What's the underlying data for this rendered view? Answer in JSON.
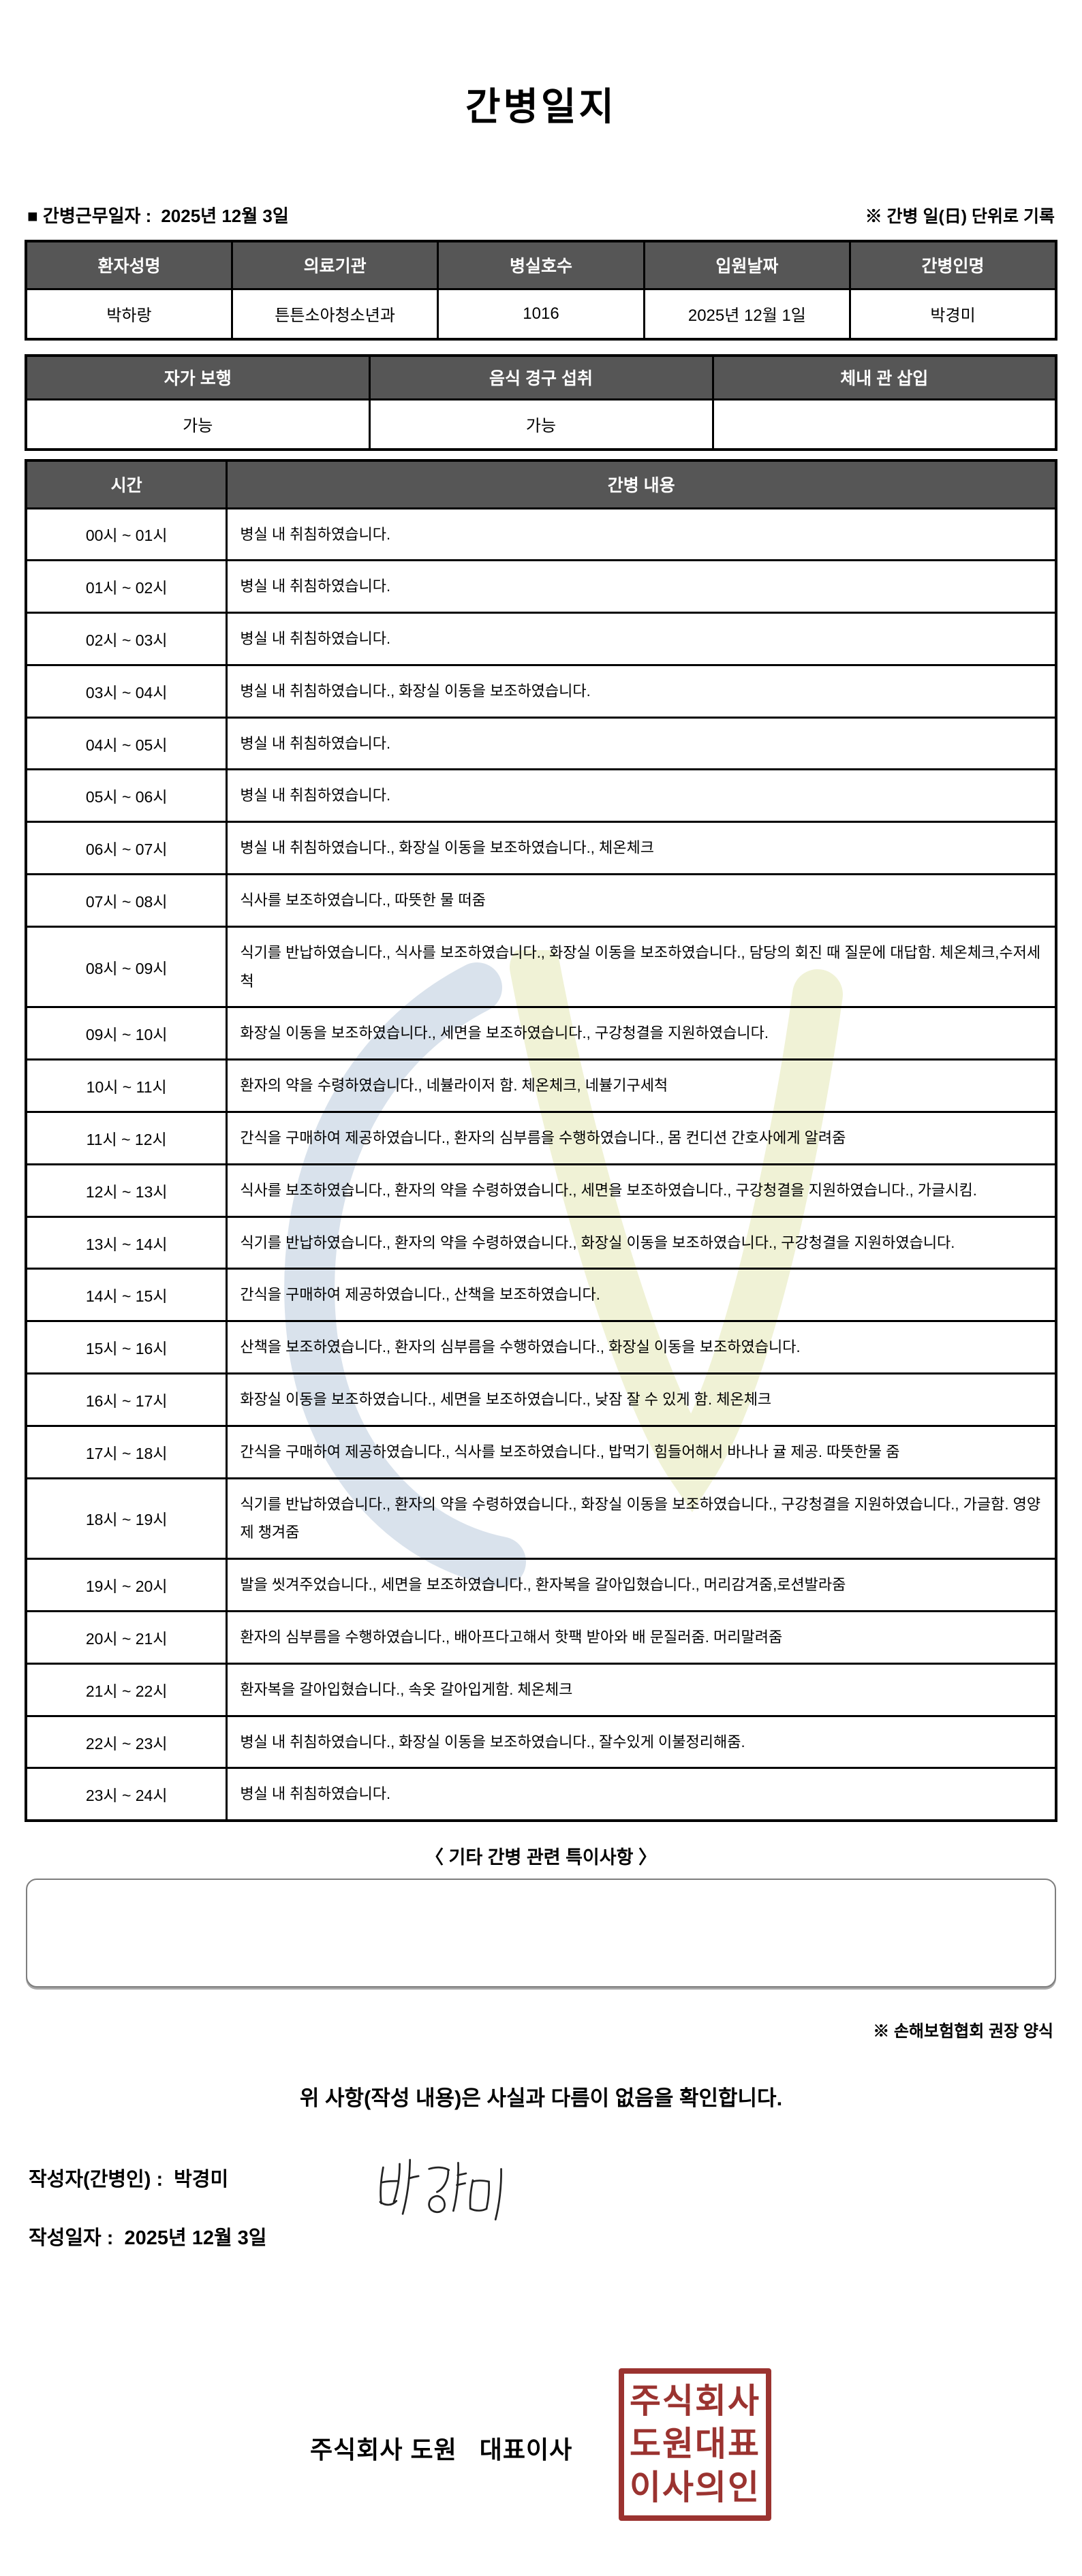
{
  "title": "간병일지",
  "meta": {
    "work_date_label": "■ 간병근무일자 :",
    "work_date_value": "2025년 12월 3일",
    "unit_note": "※ 간병 일(日) 단위로 기록"
  },
  "patient_table": {
    "headers": [
      "환자성명",
      "의료기관",
      "병실호수",
      "입원날짜",
      "간병인명"
    ],
    "values": [
      "박하랑",
      "튼튼소아청소년과",
      "1016",
      "2025년 12월 1일",
      "박경미"
    ]
  },
  "status_table": {
    "headers": [
      "자가 보행",
      "음식 경구 섭취",
      "체내 관 삽입"
    ],
    "values": [
      "가능",
      "가능",
      ""
    ]
  },
  "log_table": {
    "time_header": "시간",
    "content_header": "간병 내용",
    "rows": [
      {
        "time": "00시 ~ 01시",
        "content": "병실 내 취침하였습니다."
      },
      {
        "time": "01시 ~ 02시",
        "content": "병실 내 취침하였습니다."
      },
      {
        "time": "02시 ~ 03시",
        "content": "병실 내 취침하였습니다."
      },
      {
        "time": "03시 ~ 04시",
        "content": "병실 내 취침하였습니다., 화장실 이동을 보조하였습니다."
      },
      {
        "time": "04시 ~ 05시",
        "content": "병실 내 취침하였습니다."
      },
      {
        "time": "05시 ~ 06시",
        "content": "병실 내 취침하였습니다."
      },
      {
        "time": "06시 ~ 07시",
        "content": "병실 내 취침하였습니다., 화장실 이동을 보조하였습니다., 체온체크"
      },
      {
        "time": "07시 ~ 08시",
        "content": "식사를 보조하였습니다., 따뜻한 물 떠줌"
      },
      {
        "time": "08시 ~ 09시",
        "content": "식기를 반납하였습니다., 식사를 보조하였습니다., 화장실 이동을 보조하였습니다., 담당의 회진 때 질문에 대답함. 체온체크,수저세척"
      },
      {
        "time": "09시 ~ 10시",
        "content": "화장실 이동을 보조하였습니다., 세면을 보조하였습니다., 구강청결을 지원하였습니다."
      },
      {
        "time": "10시 ~ 11시",
        "content": "환자의 약을 수령하였습니다., 네뷸라이저 함. 체온체크, 네뷸기구세척"
      },
      {
        "time": "11시 ~ 12시",
        "content": "간식을 구매하여 제공하였습니다., 환자의 심부름을 수행하였습니다., 몸 컨디션 간호사에게 알려줌"
      },
      {
        "time": "12시 ~ 13시",
        "content": "식사를 보조하였습니다., 환자의 약을 수령하였습니다., 세면을 보조하였습니다., 구강청결을 지원하였습니다., 가글시킴."
      },
      {
        "time": "13시 ~ 14시",
        "content": "식기를 반납하였습니다., 환자의 약을 수령하였습니다., 화장실 이동을 보조하였습니다., 구강청결을 지원하였습니다."
      },
      {
        "time": "14시 ~ 15시",
        "content": "간식을 구매하여 제공하였습니다., 산책을 보조하였습니다."
      },
      {
        "time": "15시 ~ 16시",
        "content": "산책을 보조하였습니다., 환자의 심부름을 수행하였습니다., 화장실 이동을 보조하였습니다."
      },
      {
        "time": "16시 ~ 17시",
        "content": "화장실 이동을 보조하였습니다., 세면을 보조하였습니다., 낮잠 잘 수 있게 함. 체온체크"
      },
      {
        "time": "17시 ~ 18시",
        "content": "간식을 구매하여 제공하였습니다., 식사를 보조하였습니다., 밥먹기 힘들어해서 바나나 귤 제공. 따뜻한물 줌"
      },
      {
        "time": "18시 ~ 19시",
        "content": "식기를 반납하였습니다., 환자의 약을 수령하였습니다., 화장실 이동을 보조하였습니다., 구강청결을 지원하였습니다., 가글함. 영양제 챙겨줌"
      },
      {
        "time": "19시 ~ 20시",
        "content": "발을 씻겨주었습니다., 세면을 보조하였습니다., 환자복을 갈아입혔습니다., 머리감겨줌,로션발라줌"
      },
      {
        "time": "20시 ~ 21시",
        "content": "환자의 심부름을 수행하였습니다., 배아프다고해서 핫팩 받아와 배 문질러줌. 머리말려줌"
      },
      {
        "time": "21시 ~ 22시",
        "content": "환자복을 갈아입혔습니다., 속옷 갈아입게함. 체온체크"
      },
      {
        "time": "22시 ~ 23시",
        "content": "병실 내 취침하였습니다., 화장실 이동을 보조하였습니다., 잘수있게 이불정리해줌."
      },
      {
        "time": "23시 ~ 24시",
        "content": "병실 내 취침하였습니다."
      }
    ]
  },
  "notes": {
    "title": "〈 기타 간병 관련 특이사항 〉",
    "content": ""
  },
  "footer": {
    "form_note": "※ 손해보험협회 권장 양식",
    "confirmation": "위 사항(작성 내용)은 사실과 다름이 없음을 확인합니다.",
    "writer_label": "작성자(간병인) :",
    "writer_name": "박경미",
    "signature_text": "박경미",
    "date_label": "작성일자 :",
    "date_value": "2025년 12월 3일",
    "company_line": "주식회사 도원   대표이사",
    "seal_lines": [
      "주식회사",
      "도원대표",
      "이사의인"
    ]
  },
  "colors": {
    "table_header_bg": "#565656",
    "table_border": "#000000",
    "seal_red": "#9b3330",
    "watermark_blue": "#bacbdd",
    "watermark_yellow": "#e9edc5"
  }
}
